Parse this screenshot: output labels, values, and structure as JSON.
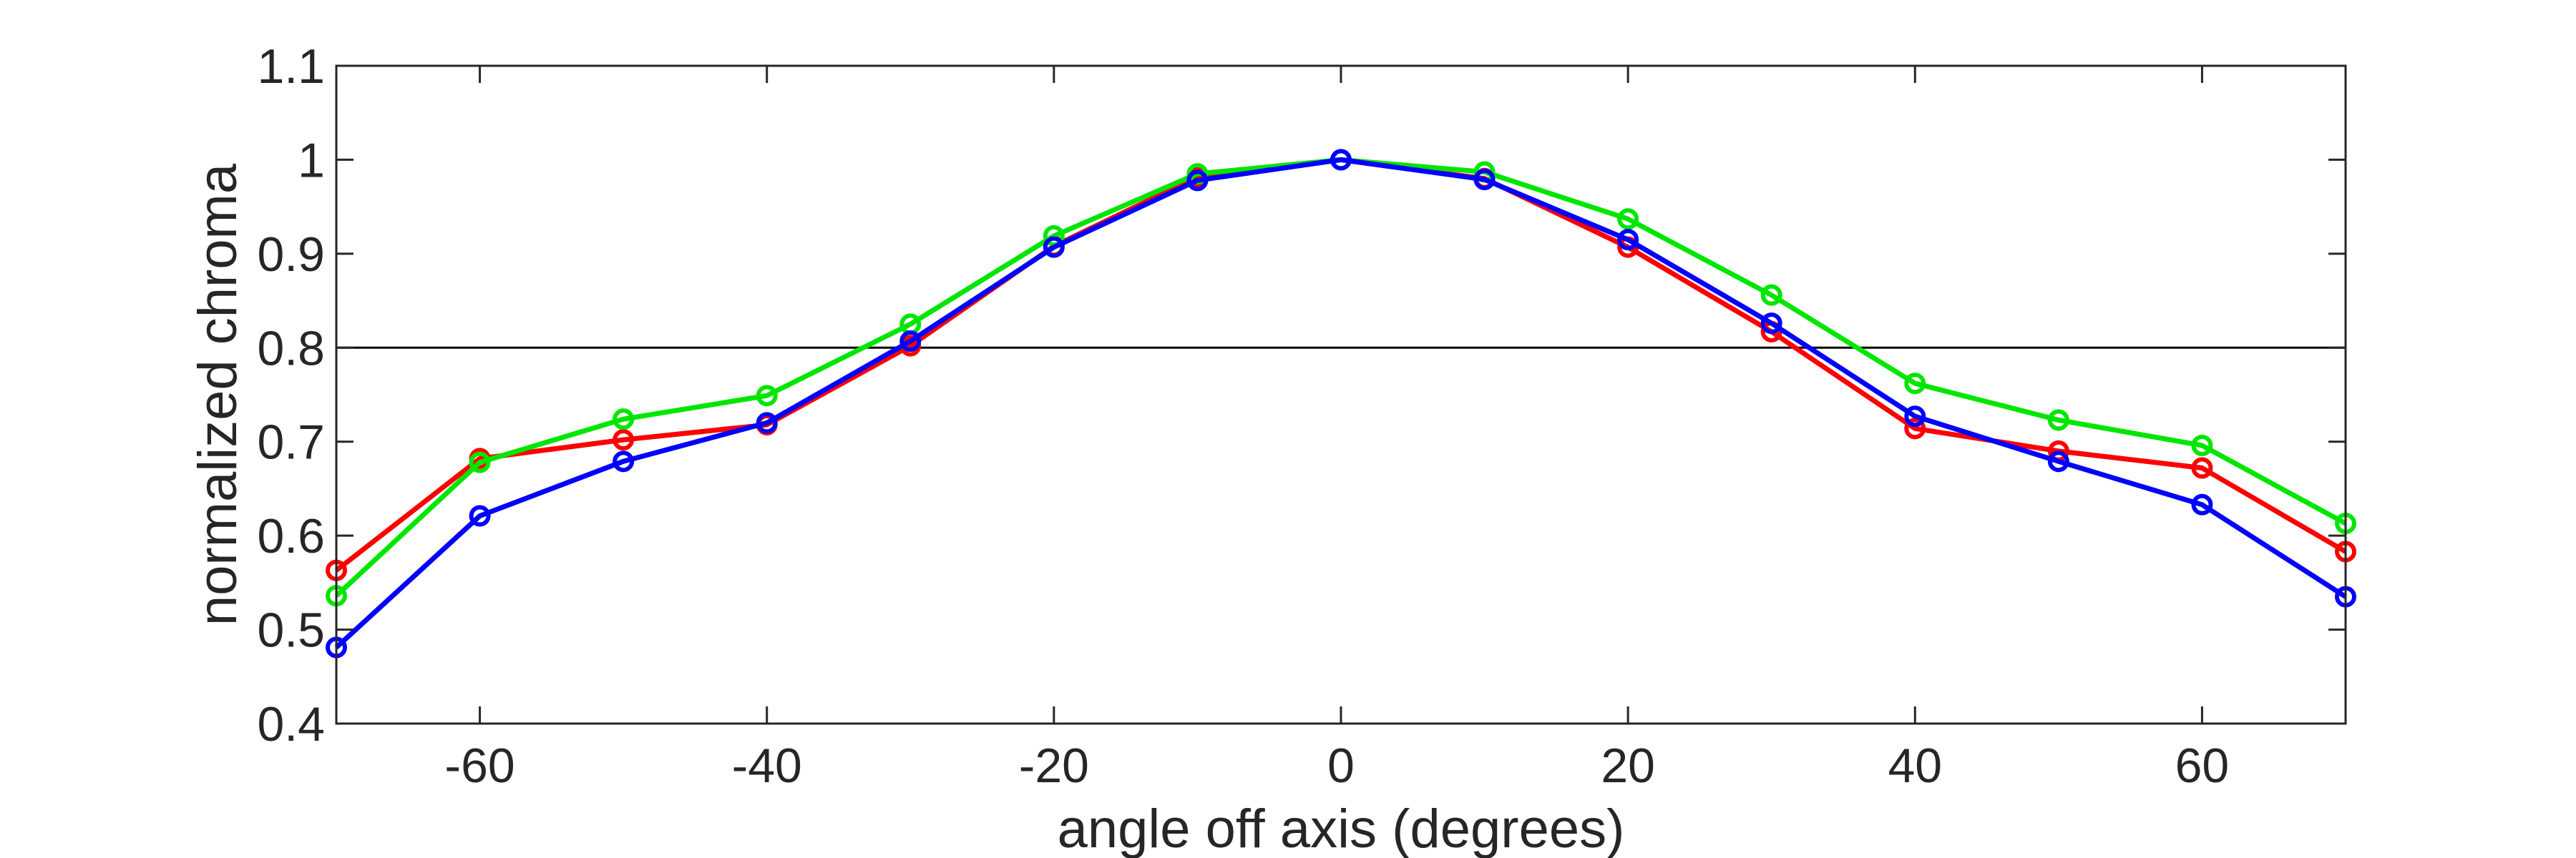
{
  "chart_data": {
    "type": "line",
    "title": "",
    "xlabel": "angle off axis (degrees)",
    "ylabel": "normalized chroma",
    "xlim": [
      -70,
      70
    ],
    "ylim": [
      0.4,
      1.1
    ],
    "xticks": [
      "-60",
      "-40",
      "-20",
      "0",
      "20",
      "40",
      "60"
    ],
    "yticks": [
      "0.4",
      "0.5",
      "0.6",
      "0.7",
      "0.8",
      "0.9",
      "1",
      "1.1"
    ],
    "grid": false,
    "reference_line": 0.8,
    "x": [
      -70,
      -60,
      -50,
      -40,
      -30,
      -20,
      -10,
      0,
      10,
      20,
      30,
      40,
      50,
      60,
      70
    ],
    "series": [
      {
        "color": "#ff0000",
        "values": [
          0.563,
          0.682,
          0.702,
          0.718,
          0.802,
          0.908,
          0.982,
          1.0,
          0.98,
          0.907,
          0.817,
          0.714,
          0.69,
          0.672,
          0.583
        ]
      },
      {
        "color": "#00e600",
        "values": [
          0.536,
          0.678,
          0.724,
          0.749,
          0.825,
          0.919,
          0.985,
          1.0,
          0.987,
          0.937,
          0.856,
          0.762,
          0.723,
          0.696,
          0.613
        ]
      },
      {
        "color": "#0000ff",
        "values": [
          0.481,
          0.621,
          0.679,
          0.72,
          0.807,
          0.907,
          0.978,
          1.0,
          0.979,
          0.915,
          0.826,
          0.727,
          0.679,
          0.633,
          0.535
        ]
      }
    ]
  }
}
